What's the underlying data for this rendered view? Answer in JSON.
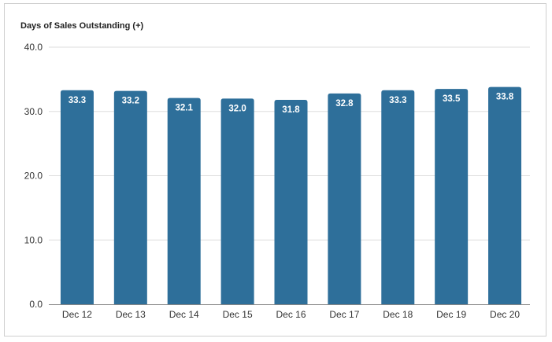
{
  "chart_data": {
    "type": "bar",
    "title": "Days of Sales Outstanding (+)",
    "xlabel": "",
    "ylabel": "",
    "categories": [
      "Dec 12",
      "Dec 13",
      "Dec 14",
      "Dec 15",
      "Dec 16",
      "Dec 17",
      "Dec 18",
      "Dec 19",
      "Dec 20"
    ],
    "values": [
      33.3,
      33.2,
      32.1,
      32.0,
      31.8,
      32.8,
      33.3,
      33.5,
      33.8
    ],
    "data_labels": [
      "33.3",
      "33.2",
      "32.1",
      "32.0",
      "31.8",
      "32.8",
      "33.3",
      "33.5",
      "33.8"
    ],
    "ylim": [
      0,
      40
    ],
    "y_ticks": [
      0,
      10,
      20,
      30,
      40
    ],
    "y_tick_labels": [
      "0.0",
      "10.0",
      "20.0",
      "30.0",
      "40.0"
    ],
    "grid": true,
    "legend": "none",
    "bar_color": "#2e6f9a",
    "grid_color": "#dddddd",
    "axis_color": "#888888"
  }
}
